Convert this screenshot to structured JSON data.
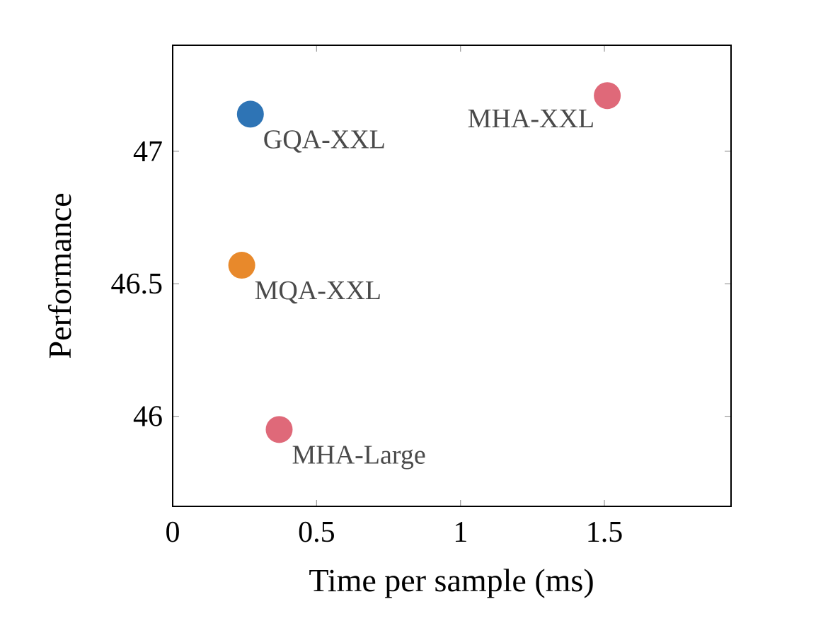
{
  "chart_data": {
    "type": "scatter",
    "title": "",
    "xlabel": "Time per sample (ms)",
    "ylabel": "Performance",
    "xlim": [
      0,
      1.94
    ],
    "ylim": [
      45.66,
      47.4
    ],
    "grid": false,
    "x_ticks": [
      0,
      0.5,
      1,
      1.5
    ],
    "x_tick_labels": [
      "0",
      "0.5",
      "1",
      "1.5"
    ],
    "y_ticks": [
      46,
      46.5,
      47
    ],
    "y_tick_labels": [
      "46",
      "46.5",
      "47"
    ],
    "points": [
      {
        "name": "GQA-XXL",
        "x": 0.27,
        "y": 47.14,
        "color": "#2e74b5",
        "label_position": "below-right"
      },
      {
        "name": "MQA-XXL",
        "x": 0.24,
        "y": 46.57,
        "color": "#e8892b",
        "label_position": "below-right"
      },
      {
        "name": "MHA-Large",
        "x": 0.37,
        "y": 45.95,
        "color": "#df6979",
        "label_position": "below-right"
      },
      {
        "name": "MHA-XXL",
        "x": 1.51,
        "y": 47.21,
        "color": "#df6979",
        "label_position": "below-left"
      }
    ]
  }
}
